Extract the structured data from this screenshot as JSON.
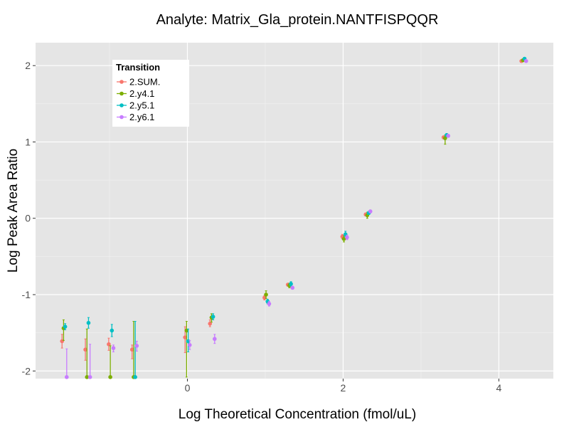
{
  "chart_data": {
    "type": "scatter",
    "title": "Analyte: Matrix_Gla_protein.NANTFISPQQR",
    "xlabel": "Log Theoretical Concentration (fmol/uL)",
    "ylabel": "Log Peak Area Ratio",
    "xlim": [
      -1.95,
      4.7
    ],
    "ylim": [
      -2.1,
      2.3
    ],
    "x_ticks": [
      0,
      2,
      4
    ],
    "y_ticks": [
      -2,
      -1,
      0,
      1,
      2
    ],
    "x_tick_labels": [
      "0",
      "2",
      "4"
    ],
    "y_tick_labels": [
      "-2",
      "-1",
      "0",
      "1",
      "2"
    ],
    "grid": true,
    "error_bars": true,
    "legend": {
      "title": "Transition",
      "placement": "top-left"
    },
    "series": [
      {
        "name": "2.SUM.",
        "color": "#F8766D",
        "points": [
          {
            "x": -1.61,
            "y": -1.61,
            "lo": -1.7,
            "hi": -1.52
          },
          {
            "x": -1.31,
            "y": -1.72,
            "lo": -1.86,
            "hi": -1.58
          },
          {
            "x": -1.01,
            "y": -1.65,
            "lo": -1.73,
            "hi": -1.57
          },
          {
            "x": -0.71,
            "y": -1.72,
            "lo": -1.84,
            "hi": -1.66
          },
          {
            "x": -0.03,
            "y": -1.56,
            "lo": -1.76,
            "hi": -1.42
          },
          {
            "x": 0.29,
            "y": -1.38,
            "lo": -1.42,
            "hi": -1.33
          },
          {
            "x": 0.99,
            "y": -1.04,
            "lo": -1.07,
            "hi": -1.01
          },
          {
            "x": 1.29,
            "y": -0.87,
            "lo": -0.89,
            "hi": -0.85
          },
          {
            "x": 1.99,
            "y": -0.24,
            "lo": -0.27,
            "hi": -0.21
          },
          {
            "x": 2.29,
            "y": 0.05,
            "lo": 0.03,
            "hi": 0.07
          },
          {
            "x": 3.29,
            "y": 1.06,
            "lo": 1.04,
            "hi": 1.08
          },
          {
            "x": 4.29,
            "y": 2.06,
            "lo": 2.05,
            "hi": 2.07
          }
        ]
      },
      {
        "name": "2.y4.1",
        "color": "#7CAE00",
        "points": [
          {
            "x": -1.59,
            "y": -1.44,
            "lo": -1.6,
            "hi": -1.33
          },
          {
            "x": -1.29,
            "y": -2.08,
            "lo": -2.08,
            "hi": -1.45
          },
          {
            "x": -0.99,
            "y": -2.08,
            "lo": -2.08,
            "hi": -1.67
          },
          {
            "x": -0.69,
            "y": -2.08,
            "lo": -2.08,
            "hi": -1.35
          },
          {
            "x": -0.01,
            "y": -1.47,
            "lo": -2.08,
            "hi": -1.35
          },
          {
            "x": 0.31,
            "y": -1.3,
            "lo": -1.36,
            "hi": -1.25
          },
          {
            "x": 1.01,
            "y": -1.0,
            "lo": -1.05,
            "hi": -0.95
          },
          {
            "x": 1.31,
            "y": -0.88,
            "lo": -0.91,
            "hi": -0.85
          },
          {
            "x": 2.01,
            "y": -0.27,
            "lo": -0.31,
            "hi": -0.23
          },
          {
            "x": 2.31,
            "y": 0.04,
            "lo": 0.0,
            "hi": 0.08
          },
          {
            "x": 3.31,
            "y": 1.05,
            "lo": 0.97,
            "hi": 1.09
          },
          {
            "x": 4.31,
            "y": 2.07,
            "lo": 2.06,
            "hi": 2.09
          }
        ]
      },
      {
        "name": "2.y5.1",
        "color": "#00BFC4",
        "points": [
          {
            "x": -1.57,
            "y": -1.42,
            "lo": -1.46,
            "hi": -1.38
          },
          {
            "x": -1.27,
            "y": -1.37,
            "lo": -1.44,
            "hi": -1.3
          },
          {
            "x": -0.97,
            "y": -1.47,
            "lo": -1.55,
            "hi": -1.39
          },
          {
            "x": -0.67,
            "y": -2.08,
            "lo": -2.08,
            "hi": -1.35
          },
          {
            "x": 0.01,
            "y": -1.61,
            "lo": -1.75,
            "hi": -1.45
          },
          {
            "x": 0.33,
            "y": -1.29,
            "lo": -1.33,
            "hi": -1.25
          },
          {
            "x": 1.03,
            "y": -1.09,
            "lo": -1.12,
            "hi": -1.06
          },
          {
            "x": 1.33,
            "y": -0.86,
            "lo": -0.89,
            "hi": -0.83
          },
          {
            "x": 2.03,
            "y": -0.21,
            "lo": -0.24,
            "hi": -0.17
          },
          {
            "x": 2.33,
            "y": 0.07,
            "lo": 0.05,
            "hi": 0.09
          },
          {
            "x": 3.33,
            "y": 1.09,
            "lo": 1.07,
            "hi": 1.11
          },
          {
            "x": 4.33,
            "y": 2.09,
            "lo": 2.08,
            "hi": 2.1
          }
        ]
      },
      {
        "name": "2.y6.1",
        "color": "#C77CFF",
        "points": [
          {
            "x": -1.55,
            "y": -2.08,
            "lo": -2.08,
            "hi": -1.71
          },
          {
            "x": -1.25,
            "y": -2.08,
            "lo": -2.08,
            "hi": -1.65
          },
          {
            "x": -0.95,
            "y": -1.7,
            "lo": -1.75,
            "hi": -1.66
          },
          {
            "x": -0.65,
            "y": -1.67,
            "lo": -1.74,
            "hi": -1.61
          },
          {
            "x": 0.03,
            "y": -1.66,
            "lo": -1.72,
            "hi": -1.6
          },
          {
            "x": 0.35,
            "y": -1.58,
            "lo": -1.64,
            "hi": -1.52
          },
          {
            "x": 1.05,
            "y": -1.12,
            "lo": -1.15,
            "hi": -1.09
          },
          {
            "x": 1.35,
            "y": -0.91,
            "lo": -0.93,
            "hi": -0.89
          },
          {
            "x": 2.05,
            "y": -0.25,
            "lo": -0.28,
            "hi": -0.22
          },
          {
            "x": 2.35,
            "y": 0.09,
            "lo": 0.07,
            "hi": 0.11
          },
          {
            "x": 3.35,
            "y": 1.08,
            "lo": 1.06,
            "hi": 1.1
          },
          {
            "x": 4.35,
            "y": 2.06,
            "lo": 2.05,
            "hi": 2.07
          }
        ]
      }
    ]
  }
}
